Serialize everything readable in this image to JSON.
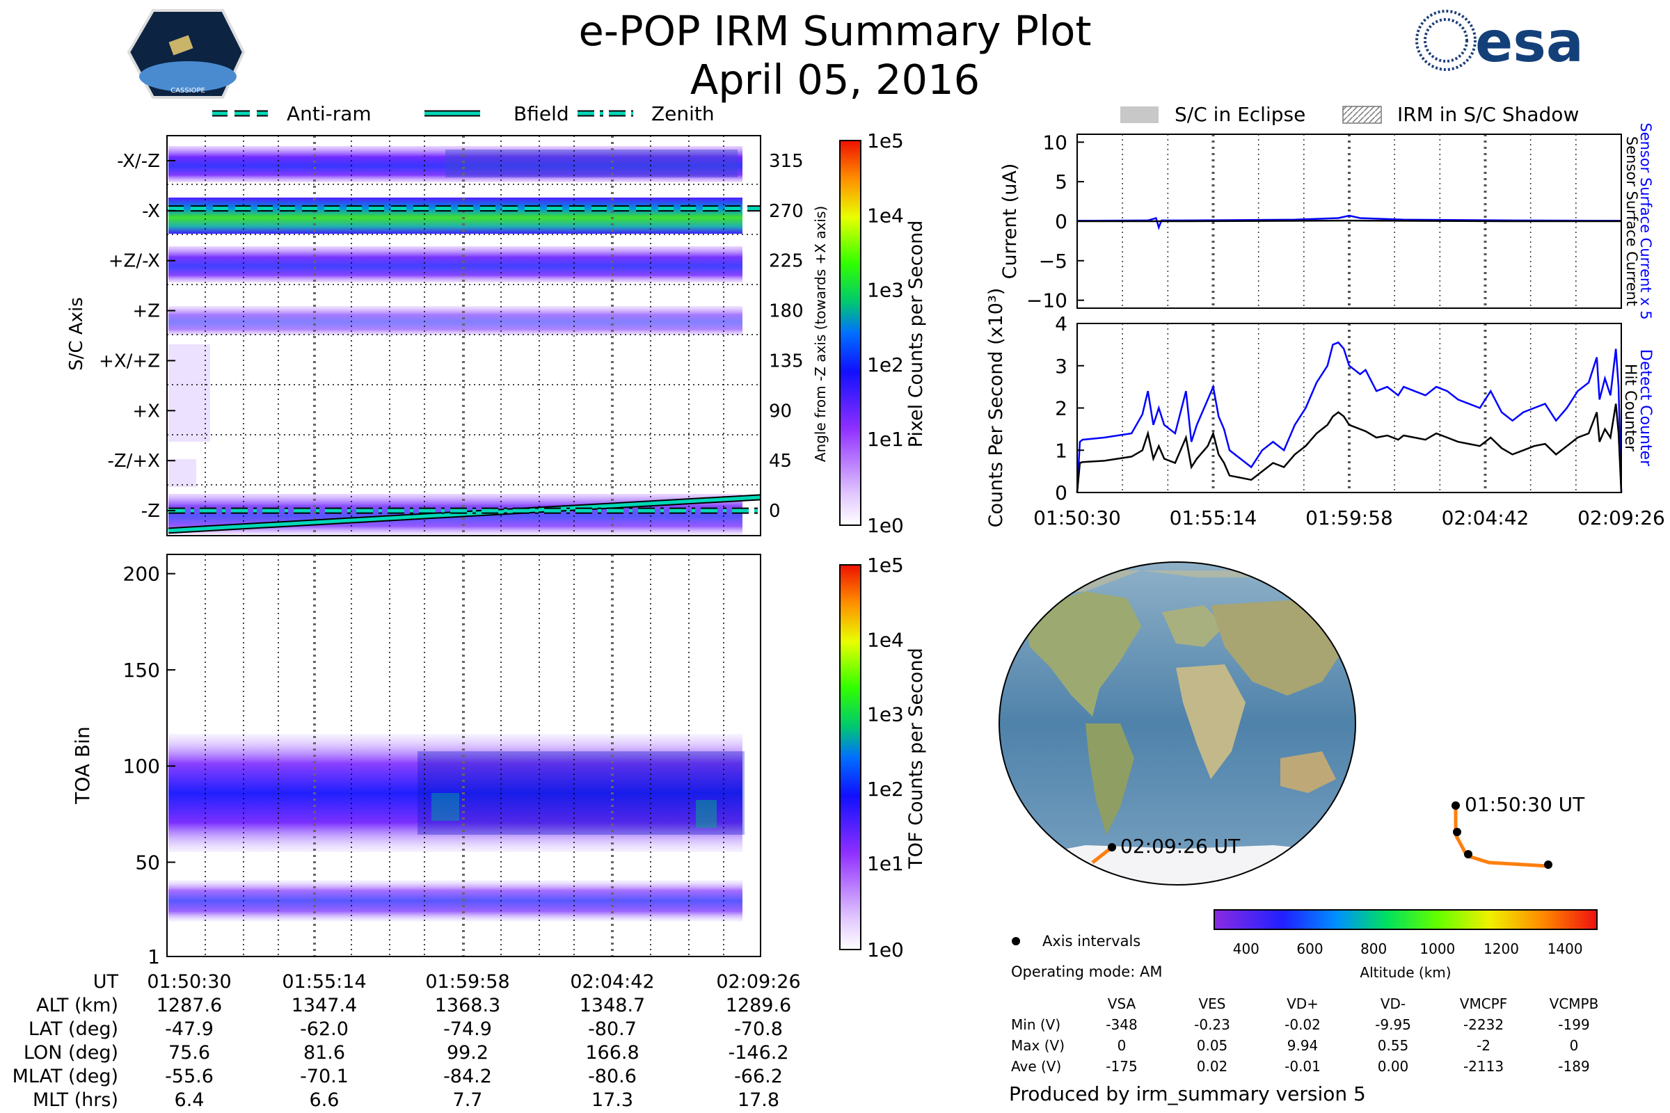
{
  "title": "e-POP IRM Summary Plot",
  "date": "April 05, 2016",
  "logos": {
    "mission": "CASSIOPE",
    "agency": "esa"
  },
  "legend_top_left": [
    "Anti-ram",
    "Bfield",
    "Zenith"
  ],
  "legend_top_right": [
    "S/C in Eclipse",
    "IRM in S/C Shadow"
  ],
  "time_ticks": [
    "01:50:30",
    "01:55:14",
    "01:59:58",
    "02:04:42",
    "02:09:26"
  ],
  "time_ticks_right": [
    "01:50:30",
    "01:55:14",
    "01:59:58",
    "02:04:42",
    "02:09:26"
  ],
  "colors": {
    "accent_blue": "#0000ff",
    "line_black": "#000000",
    "teal": "#00d8b8",
    "orbit": "#ff7f0e"
  },
  "chart_data": [
    {
      "id": "pixel_counts",
      "type": "heatmap",
      "ylabel": "S/C Axis",
      "yticks": [
        "-X/-Z",
        "-X",
        "+Z/-X",
        "+Z",
        "+X/+Z",
        "+X",
        "-Z/+X",
        "-Z"
      ],
      "y2label": "Angle from -Z axis (towards +X axis)",
      "y2ticks": [
        "315",
        "270",
        "225",
        "180",
        "135",
        "90",
        "45",
        "0"
      ],
      "y2lim": [
        -22.5,
        337.5
      ],
      "colorbar_label": "Pixel Counts per Second",
      "colorbar_ticks": [
        "1e5",
        "1e4",
        "1e3",
        "1e2",
        "1e1",
        "1e0"
      ],
      "lines": [
        {
          "name": "Anti-ram",
          "style": "dashed",
          "start_angle": 272,
          "end_angle": 272
        },
        {
          "name": "Bfield",
          "style": "solid",
          "start_angle": -18,
          "end_angle": 12
        },
        {
          "name": "Zenith",
          "style": "dashdot",
          "start_angle": 0,
          "end_angle": 0
        }
      ]
    },
    {
      "id": "tof_counts",
      "type": "heatmap",
      "ylabel": "TOA Bin",
      "yticks": [
        "200",
        "150",
        "100",
        "50",
        "1"
      ],
      "ylim": [
        1,
        210
      ],
      "colorbar_label": "TOF Counts per Second",
      "colorbar_ticks": [
        "1e5",
        "1e4",
        "1e3",
        "1e2",
        "1e1",
        "1e0"
      ]
    },
    {
      "id": "current",
      "type": "line",
      "ylabel": "Current (uA)",
      "yticks": [
        "10",
        "5",
        "0",
        "−5",
        "−10"
      ],
      "ylim": [
        -11,
        11
      ],
      "right_labels": [
        "Sensor Surface Current x 5",
        "Sensor Surface Current"
      ],
      "series": [
        {
          "name": "Sensor Surface Current x 5",
          "color": "#0000ff",
          "x_frac": [
            0,
            0.13,
            0.145,
            0.15,
            0.155,
            0.2,
            0.4,
            0.48,
            0.5,
            0.52,
            0.6,
            0.8,
            1
          ],
          "values": [
            0.05,
            0.1,
            0.4,
            -0.8,
            0.1,
            0.1,
            0.2,
            0.4,
            0.7,
            0.4,
            0.2,
            0.1,
            0.05
          ]
        },
        {
          "name": "Sensor Surface Current",
          "color": "#000000",
          "x_frac": [
            0,
            0.2,
            0.5,
            0.8,
            1
          ],
          "values": [
            0,
            0,
            0.08,
            0,
            0
          ]
        }
      ]
    },
    {
      "id": "hit_counter",
      "type": "line",
      "ylabel": "Counts Per Second (x10³)",
      "yticks": [
        "4",
        "3",
        "2",
        "1",
        "0"
      ],
      "ylim": [
        0,
        4
      ],
      "right_labels": [
        "Detect Counter",
        "Hit Counter"
      ],
      "series": [
        {
          "name": "Detect Counter",
          "color": "#0000ff",
          "x_frac": [
            0,
            0.005,
            0.01,
            0.05,
            0.1,
            0.12,
            0.13,
            0.14,
            0.15,
            0.16,
            0.18,
            0.2,
            0.21,
            0.22,
            0.24,
            0.25,
            0.26,
            0.27,
            0.28,
            0.3,
            0.32,
            0.34,
            0.36,
            0.38,
            0.4,
            0.42,
            0.44,
            0.46,
            0.47,
            0.48,
            0.49,
            0.5,
            0.51,
            0.52,
            0.53,
            0.55,
            0.57,
            0.59,
            0.6,
            0.62,
            0.64,
            0.66,
            0.68,
            0.7,
            0.72,
            0.74,
            0.76,
            0.78,
            0.8,
            0.82,
            0.84,
            0.86,
            0.88,
            0.9,
            0.92,
            0.94,
            0.955,
            0.96,
            0.97,
            0.98,
            0.99,
            0.995,
            1.0
          ],
          "values": [
            0,
            1.2,
            1.25,
            1.3,
            1.4,
            1.85,
            2.4,
            1.6,
            2.0,
            1.6,
            1.4,
            2.4,
            1.2,
            1.6,
            2.2,
            2.5,
            1.8,
            1.5,
            1.0,
            0.8,
            0.6,
            1.0,
            1.2,
            1.0,
            1.6,
            2.0,
            2.6,
            3.0,
            3.5,
            3.55,
            3.4,
            3.0,
            2.9,
            2.8,
            2.9,
            2.4,
            2.5,
            2.3,
            2.5,
            2.4,
            2.3,
            2.5,
            2.4,
            2.2,
            2.1,
            2.0,
            2.4,
            1.9,
            1.7,
            1.9,
            2.0,
            2.1,
            1.7,
            2.0,
            2.4,
            2.6,
            3.2,
            2.2,
            2.7,
            2.3,
            3.4,
            2.5,
            0
          ]
        },
        {
          "name": "Hit Counter",
          "color": "#000000",
          "x_frac": [
            0,
            0.005,
            0.01,
            0.05,
            0.1,
            0.12,
            0.13,
            0.14,
            0.15,
            0.16,
            0.18,
            0.2,
            0.21,
            0.22,
            0.24,
            0.25,
            0.26,
            0.27,
            0.28,
            0.3,
            0.32,
            0.34,
            0.36,
            0.38,
            0.4,
            0.42,
            0.44,
            0.46,
            0.47,
            0.48,
            0.49,
            0.5,
            0.51,
            0.52,
            0.53,
            0.55,
            0.57,
            0.59,
            0.6,
            0.62,
            0.64,
            0.66,
            0.68,
            0.7,
            0.72,
            0.74,
            0.76,
            0.78,
            0.8,
            0.82,
            0.84,
            0.86,
            0.88,
            0.9,
            0.92,
            0.94,
            0.955,
            0.96,
            0.97,
            0.98,
            0.99,
            0.995,
            1.0
          ],
          "values": [
            0,
            0.7,
            0.72,
            0.75,
            0.85,
            1.0,
            1.4,
            0.8,
            1.1,
            0.8,
            0.7,
            1.3,
            0.6,
            0.8,
            1.1,
            1.4,
            0.9,
            0.7,
            0.4,
            0.35,
            0.3,
            0.5,
            0.7,
            0.6,
            0.9,
            1.1,
            1.4,
            1.6,
            1.8,
            1.9,
            1.8,
            1.6,
            1.55,
            1.5,
            1.45,
            1.3,
            1.35,
            1.25,
            1.35,
            1.3,
            1.25,
            1.4,
            1.3,
            1.2,
            1.15,
            1.1,
            1.3,
            1.05,
            0.9,
            1.0,
            1.1,
            1.15,
            0.9,
            1.1,
            1.3,
            1.4,
            1.9,
            1.2,
            1.5,
            1.3,
            2.1,
            1.4,
            0
          ]
        }
      ]
    }
  ],
  "map": {
    "orbit_start_label": "01:50:30 UT",
    "orbit_end_label": "02:09:26 UT",
    "legend_axis_intervals": "Axis intervals",
    "operating_mode": "Operating mode: AM",
    "altitude_label": "Altitude (km)",
    "altitude_ticks": [
      "400",
      "600",
      "800",
      "1000",
      "1200",
      "1400"
    ],
    "altitude_range": [
      300,
      1500
    ]
  },
  "voltages": {
    "columns": [
      "VSA",
      "VES",
      "VD+",
      "VD-",
      "VMCPF",
      "VCMPB"
    ],
    "rows": [
      {
        "label": "Min (V)",
        "values": [
          "-348",
          "-0.23",
          "-0.02",
          "-9.95",
          "-2232",
          "-199"
        ]
      },
      {
        "label": "Max (V)",
        "values": [
          "0",
          "0.05",
          "9.94",
          "0.55",
          "-2",
          "0"
        ]
      },
      {
        "label": "Ave (V)",
        "values": [
          "-175",
          "0.02",
          "-0.01",
          "0.00",
          "-2113",
          "-189"
        ]
      }
    ]
  },
  "orbit_table": {
    "rows": [
      {
        "label": "UT",
        "values": [
          "01:50:30",
          "01:55:14",
          "01:59:58",
          "02:04:42",
          "02:09:26"
        ]
      },
      {
        "label": "ALT (km)",
        "values": [
          "1287.6",
          "1347.4",
          "1368.3",
          "1348.7",
          "1289.6"
        ]
      },
      {
        "label": "LAT (deg)",
        "values": [
          "-47.9",
          "-62.0",
          "-74.9",
          "-80.7",
          "-70.8"
        ]
      },
      {
        "label": "LON (deg)",
        "values": [
          "75.6",
          "81.6",
          "99.2",
          "166.8",
          "-146.2"
        ]
      },
      {
        "label": "MLAT (deg)",
        "values": [
          "-55.6",
          "-70.1",
          "-84.2",
          "-80.6",
          "-66.2"
        ]
      },
      {
        "label": "MLT (hrs)",
        "values": [
          "6.4",
          "6.6",
          "7.7",
          "17.3",
          "17.8"
        ]
      }
    ]
  },
  "footer": "Produced by irm_summary version 5"
}
